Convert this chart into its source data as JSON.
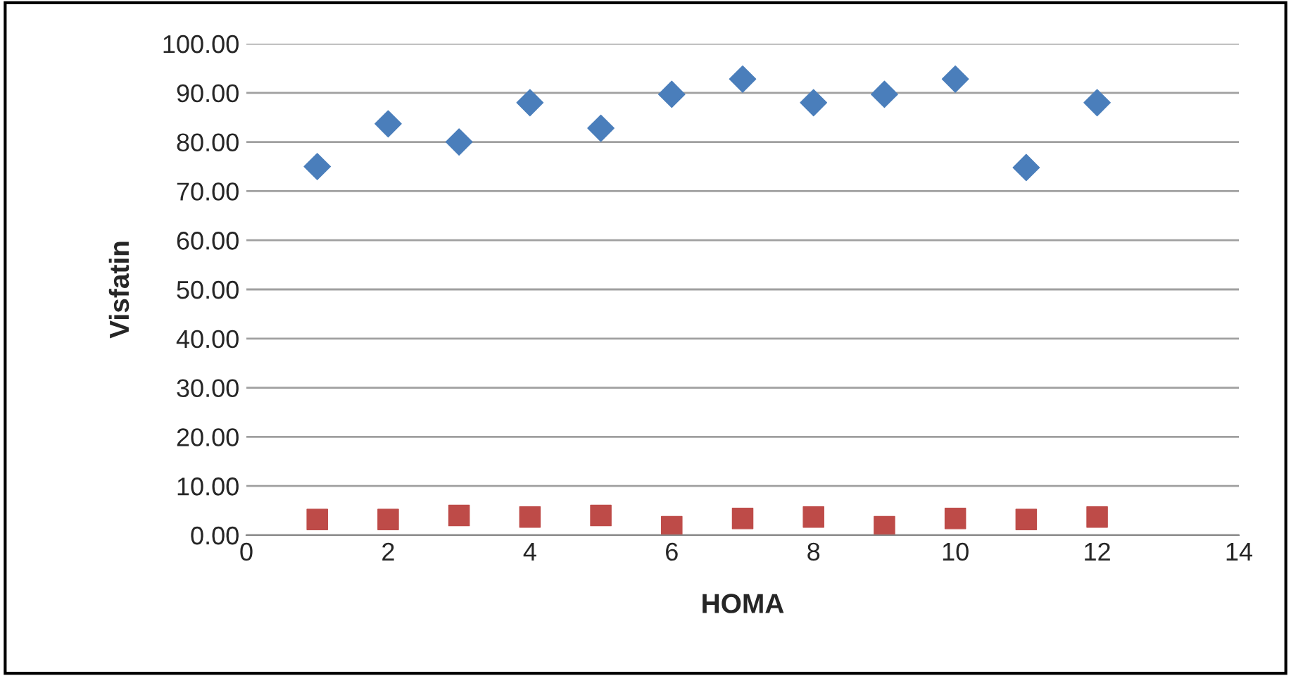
{
  "chart_data": {
    "type": "scatter",
    "xlabel": "HOMA",
    "ylabel": "Visfatin",
    "x": [
      1,
      2,
      3,
      4,
      5,
      6,
      7,
      8,
      9,
      10,
      11,
      12
    ],
    "series": [
      {
        "color": "#4a7ebb",
        "marker": "diamond",
        "values": [
          75,
          83.7,
          80,
          88,
          82.8,
          89.7,
          92.8,
          88,
          89.7,
          92.8,
          74.8,
          88
        ]
      },
      {
        "color": "#be4b48",
        "marker": "square",
        "values": [
          3.2,
          3.2,
          4,
          3.7,
          4,
          1.7,
          3.4,
          3.7,
          1.7,
          3.4,
          3.2,
          3.7
        ]
      }
    ],
    "xlim": [
      0,
      14
    ],
    "xticks": [
      0,
      2,
      4,
      6,
      8,
      10,
      12,
      14
    ],
    "ylim": [
      0,
      100
    ],
    "yticks": [
      {
        "value": 0,
        "label": "0.00"
      },
      {
        "value": 10,
        "label": "10.00"
      },
      {
        "value": 20,
        "label": "20.00"
      },
      {
        "value": 30,
        "label": "30.00"
      },
      {
        "value": 40,
        "label": "40.00"
      },
      {
        "value": 50,
        "label": "50.00"
      },
      {
        "value": 60,
        "label": "60.00"
      },
      {
        "value": 70,
        "label": "70.00"
      },
      {
        "value": 80,
        "label": "80.00"
      },
      {
        "value": 90,
        "label": "90.00"
      },
      {
        "value": 100,
        "label": "100.00"
      }
    ],
    "grid": "y",
    "legend": false
  }
}
